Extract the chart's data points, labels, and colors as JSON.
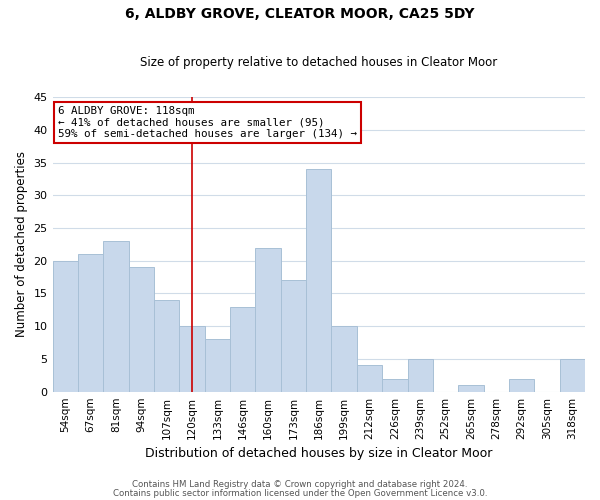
{
  "title": "6, ALDBY GROVE, CLEATOR MOOR, CA25 5DY",
  "subtitle": "Size of property relative to detached houses in Cleator Moor",
  "xlabel": "Distribution of detached houses by size in Cleator Moor",
  "ylabel": "Number of detached properties",
  "bar_color": "#c8d8eb",
  "bar_edge_color": "#a8c0d6",
  "categories": [
    "54sqm",
    "67sqm",
    "81sqm",
    "94sqm",
    "107sqm",
    "120sqm",
    "133sqm",
    "146sqm",
    "160sqm",
    "173sqm",
    "186sqm",
    "199sqm",
    "212sqm",
    "226sqm",
    "239sqm",
    "252sqm",
    "265sqm",
    "278sqm",
    "292sqm",
    "305sqm",
    "318sqm"
  ],
  "values": [
    20,
    21,
    23,
    19,
    14,
    10,
    8,
    13,
    22,
    17,
    34,
    10,
    4,
    2,
    5,
    0,
    1,
    0,
    2,
    0,
    5
  ],
  "vline_x_index": 5,
  "vline_color": "#cc0000",
  "ylim": [
    0,
    45
  ],
  "yticks": [
    0,
    5,
    10,
    15,
    20,
    25,
    30,
    35,
    40,
    45
  ],
  "annotation_title": "6 ALDBY GROVE: 118sqm",
  "annotation_line1": "← 41% of detached houses are smaller (95)",
  "annotation_line2": "59% of semi-detached houses are larger (134) →",
  "footer1": "Contains HM Land Registry data © Crown copyright and database right 2024.",
  "footer2": "Contains public sector information licensed under the Open Government Licence v3.0.",
  "background_color": "#ffffff",
  "grid_color": "#d0dce8"
}
